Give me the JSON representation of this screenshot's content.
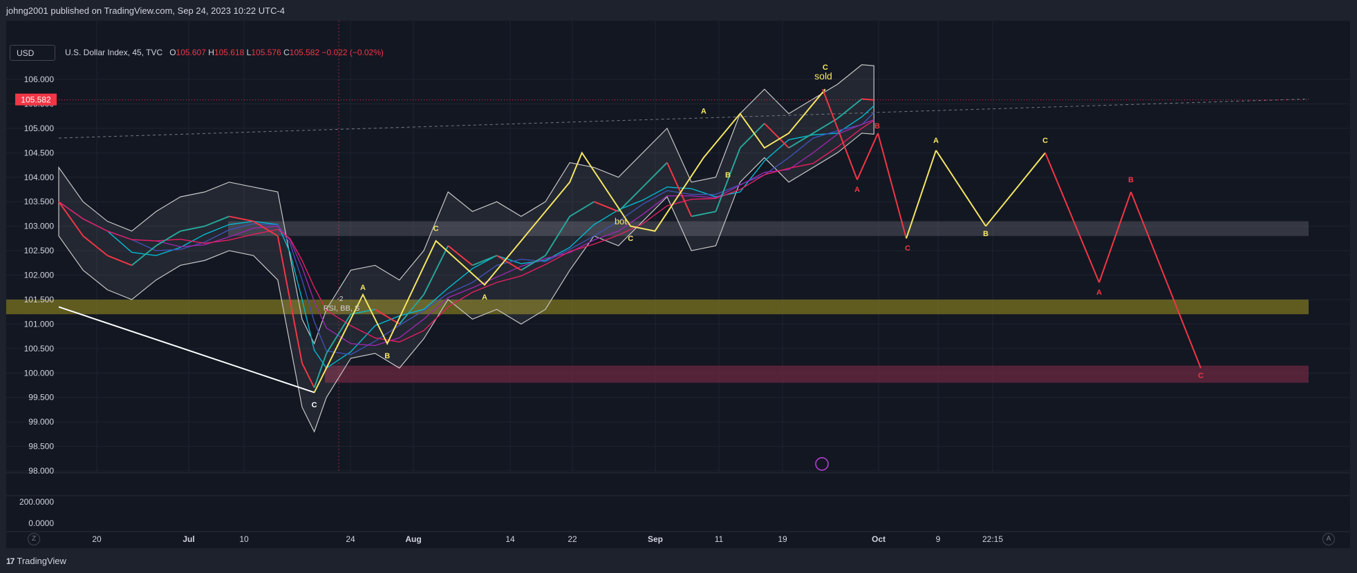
{
  "header": {
    "published": "johng2001 published on TradingView.com, Sep 24, 2023 10:22 UTC-4"
  },
  "symbol_box": {
    "label": "USD"
  },
  "legend": {
    "name": "U.S. Dollar Index, 45, TVC",
    "o_label": "O",
    "o": "105.607",
    "h_label": "H",
    "h": "105.618",
    "l_label": "L",
    "l": "105.576",
    "c_label": "C",
    "c": "105.582",
    "change": "−0.022 (−0.02%)"
  },
  "price_tag": "105.582",
  "footer": {
    "brand": "TradingView"
  },
  "buttons": {
    "left_zoom": "Z",
    "right_zoom": "A"
  },
  "colors": {
    "background": "#131722",
    "frame": "#1e222d",
    "up": "#26a69a",
    "down": "#f23645",
    "projection_red": "#f23645",
    "projection_yellow": "#f5e663",
    "zone_gray": "#5d606b",
    "zone_olive": "#8a7f1f",
    "zone_maroon": "#7a2a45"
  },
  "chart_data": {
    "type": "line",
    "symbol": "U.S. Dollar Index",
    "interval": "45",
    "ylim": [
      98.0,
      106.3
    ],
    "y_ticks": [
      "106.000",
      "105.500",
      "105.000",
      "104.500",
      "104.000",
      "103.500",
      "103.000",
      "102.500",
      "102.000",
      "101.500",
      "101.000",
      "100.500",
      "100.000",
      "99.500",
      "99.000",
      "98.500",
      "98.000"
    ],
    "x_ticks": [
      "20",
      "Jul",
      "10",
      "24",
      "Aug",
      "14",
      "22",
      "Sep",
      "11",
      "19",
      "Oct",
      "9",
      "22:15"
    ],
    "indicator_ticks": [
      "200.0000",
      "0.0000"
    ],
    "zones": [
      {
        "name": "gray",
        "from": 102.8,
        "to": 103.1
      },
      {
        "name": "olive",
        "from": 101.2,
        "to": 101.5
      },
      {
        "name": "maroon",
        "from": 99.8,
        "to": 100.15
      }
    ],
    "series": [
      {
        "name": "price",
        "x": [
          0,
          2,
          4,
          6,
          8,
          10,
          12,
          14,
          16,
          18,
          19,
          20,
          21,
          22,
          24,
          26,
          28,
          30,
          32,
          34,
          36,
          38,
          40,
          42,
          44,
          46,
          48,
          50,
          52,
          54,
          56,
          58,
          60,
          62,
          64,
          66,
          67
        ],
        "values": [
          103.5,
          102.8,
          102.4,
          102.2,
          102.6,
          102.9,
          103.0,
          103.2,
          103.1,
          102.8,
          101.5,
          100.2,
          99.7,
          100.4,
          101.2,
          101.3,
          101.0,
          101.6,
          102.6,
          102.2,
          102.4,
          102.1,
          102.4,
          103.2,
          103.5,
          103.3,
          103.8,
          104.3,
          103.2,
          103.3,
          104.6,
          105.1,
          104.6,
          104.9,
          105.2,
          105.6,
          105.58
        ]
      },
      {
        "name": "yellow-waves",
        "x": [
          21,
          25,
          27,
          31,
          35,
          42,
          43,
          47,
          49,
          53,
          56,
          58,
          60,
          63
        ],
        "values": [
          99.6,
          101.6,
          100.6,
          102.7,
          101.8,
          103.9,
          104.5,
          103.0,
          102.9,
          104.4,
          105.3,
          104.6,
          104.9,
          105.8
        ]
      },
      {
        "name": "projection",
        "x": [
          63,
          67,
          68,
          69,
          70,
          72,
          74,
          76,
          79,
          82,
          83,
          86
        ],
        "values": [
          105.8,
          103.95,
          104.9,
          102.75,
          104.55,
          103.0,
          104.5,
          101.85,
          103.7,
          100.1,
          100.1,
          100.1
        ]
      }
    ],
    "wave_labels": [
      {
        "text": "C",
        "x": 21,
        "y": 99.3,
        "color": "white"
      },
      {
        "text": "A",
        "x": 25,
        "y": 101.7,
        "color": "yellow"
      },
      {
        "text": "B",
        "x": 27,
        "y": 100.3,
        "color": "yellow"
      },
      {
        "text": "C",
        "x": 31,
        "y": 102.9,
        "color": "yellow"
      },
      {
        "text": "A",
        "x": 35,
        "y": 101.5,
        "color": "yellow"
      },
      {
        "text": "C",
        "x": 47,
        "y": 102.7,
        "color": "yellow"
      },
      {
        "text": "A",
        "x": 53,
        "y": 105.3,
        "color": "yellow"
      },
      {
        "text": "B",
        "x": 55,
        "y": 104.0,
        "color": "yellow"
      },
      {
        "text": "C",
        "x": 63,
        "y": 106.2,
        "color": "yellow"
      },
      {
        "text": "A",
        "x": 67,
        "y": 103.7,
        "color": "red"
      },
      {
        "text": "B",
        "x": 68,
        "y": 105.0,
        "color": "red"
      },
      {
        "text": "C",
        "x": 69,
        "y": 102.5,
        "color": "red"
      },
      {
        "text": "A",
        "x": 70,
        "y": 104.7,
        "color": "yellow"
      },
      {
        "text": "B",
        "x": 72,
        "y": 102.8,
        "color": "yellow"
      },
      {
        "text": "C",
        "x": 74,
        "y": 104.7,
        "color": "yellow"
      },
      {
        "text": "A",
        "x": 76,
        "y": 101.6,
        "color": "red"
      },
      {
        "text": "B",
        "x": 79,
        "y": 103.9,
        "color": "red"
      },
      {
        "text": "C",
        "x": 82,
        "y": 99.9,
        "color": "red"
      }
    ],
    "annotations": [
      "sold",
      "bot",
      "RSI, BB, S",
      "-2"
    ],
    "grid": true,
    "legend": "top-left"
  }
}
